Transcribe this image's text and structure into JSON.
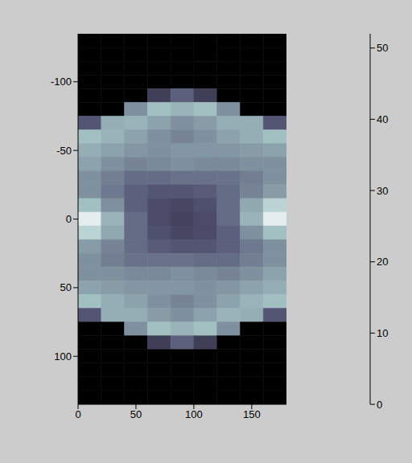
{
  "chart_data": {
    "type": "heatmap",
    "xlim": [
      0,
      180
    ],
    "xticks": [
      0,
      50,
      100,
      150
    ],
    "ylim": [
      -135,
      135
    ],
    "yticks": [
      -100,
      -50,
      0,
      50,
      100
    ],
    "x_bins": [
      0,
      20,
      40,
      60,
      80,
      100,
      120,
      140,
      160,
      180
    ],
    "y_bins": [
      -135,
      -125,
      -115,
      -105,
      -95,
      -85,
      -75,
      -65,
      -55,
      -45,
      -35,
      -25,
      -15,
      -5,
      5,
      15,
      25,
      35,
      45,
      55,
      65,
      75,
      85,
      95,
      105,
      115,
      125,
      135
    ],
    "cells": [
      [
        0,
        0,
        0,
        0,
        0,
        0,
        0,
        0,
        0
      ],
      [
        0,
        0,
        0,
        0,
        0,
        0,
        0,
        0,
        0
      ],
      [
        0,
        0,
        0,
        0,
        0,
        0,
        0,
        0,
        0
      ],
      [
        0,
        0,
        0,
        0,
        0,
        0,
        0,
        0,
        0
      ],
      [
        0,
        0,
        0,
        15,
        22,
        15,
        0,
        0,
        0
      ],
      [
        0,
        0,
        30,
        38,
        36,
        38,
        30,
        0,
        0
      ],
      [
        20,
        35,
        36,
        33,
        30,
        32,
        35,
        35,
        20
      ],
      [
        38,
        36,
        33,
        30,
        28,
        30,
        33,
        35,
        38
      ],
      [
        35,
        33,
        31,
        30,
        31,
        31,
        31,
        32,
        33
      ],
      [
        33,
        30,
        28,
        29,
        30,
        29,
        29,
        30,
        30
      ],
      [
        30,
        27,
        24,
        24,
        25,
        25,
        25,
        27,
        30
      ],
      [
        30,
        26,
        22,
        20,
        20,
        21,
        24,
        28,
        32
      ],
      [
        38,
        30,
        22,
        18,
        17,
        19,
        24,
        34,
        42
      ],
      [
        48,
        36,
        24,
        18,
        16,
        18,
        24,
        36,
        48
      ],
      [
        42,
        34,
        24,
        19,
        17,
        18,
        22,
        30,
        38
      ],
      [
        32,
        28,
        24,
        21,
        20,
        20,
        22,
        26,
        30
      ],
      [
        30,
        27,
        25,
        25,
        25,
        24,
        24,
        27,
        30
      ],
      [
        30,
        30,
        29,
        29,
        30,
        29,
        28,
        30,
        33
      ],
      [
        33,
        32,
        31,
        31,
        31,
        30,
        31,
        33,
        35
      ],
      [
        38,
        35,
        33,
        30,
        28,
        30,
        33,
        36,
        38
      ],
      [
        20,
        35,
        35,
        32,
        30,
        33,
        36,
        35,
        20
      ],
      [
        0,
        0,
        30,
        38,
        36,
        38,
        30,
        0,
        0
      ],
      [
        0,
        0,
        0,
        15,
        22,
        15,
        0,
        0,
        0
      ],
      [
        0,
        0,
        0,
        0,
        0,
        0,
        0,
        0,
        0
      ],
      [
        0,
        0,
        0,
        0,
        0,
        0,
        0,
        0,
        0
      ],
      [
        0,
        0,
        0,
        0,
        0,
        0,
        0,
        0,
        0
      ],
      [
        0,
        0,
        0,
        0,
        0,
        0,
        0,
        0,
        0
      ]
    ],
    "colorbar": {
      "range": [
        0,
        52
      ],
      "ticks": [
        0,
        10,
        20,
        30,
        40,
        50
      ]
    }
  }
}
